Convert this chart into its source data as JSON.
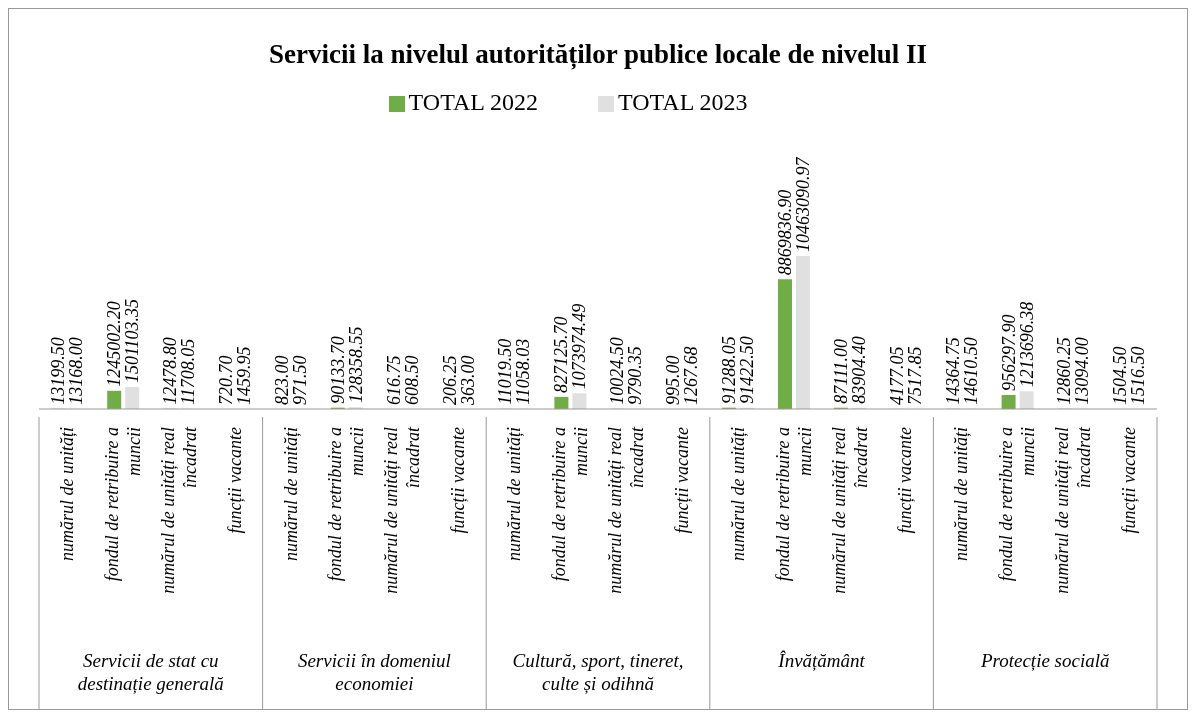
{
  "chart_data": {
    "type": "bar",
    "title": "Servicii la nivelul autorităților publice locale de nivelul II",
    "categories": [
      "numărul de unități",
      "fondul de retribuire a muncii",
      "numărul de unități real încadrat",
      "funcții vacante",
      "numărul de unități",
      "fondul de retribuire a muncii",
      "numărul de unități real încadrat",
      "funcții vacante",
      "numărul de unități",
      "fondul de retribuire a muncii",
      "numărul de unități real încadrat",
      "funcții vacante",
      "numărul de unități",
      "fondul de retribuire a muncii",
      "numărul de unități real încadrat",
      "funcții vacante",
      "numărul de unități",
      "fondul de retribuire a muncii",
      "numărul de unități real încadrat",
      "funcții vacante"
    ],
    "series": [
      {
        "name": "TOTAL 2022",
        "color": "#70ad47",
        "values": [
          13199.5,
          1245002.2,
          12478.8,
          720.7,
          823,
          90133.7,
          616.75,
          206.25,
          11019.5,
          827125.7,
          10024.5,
          995,
          91288.05,
          8869836.9,
          87111,
          4177.05,
          14364.75,
          956297.9,
          12860.25,
          1504.5
        ],
        "value_labels": [
          "13199.50",
          "1245002.20",
          "12478.80",
          "720.70",
          "823.00",
          "90133.70",
          "616.75",
          "206.25",
          "11019.50",
          "827125.70",
          "10024.50",
          "995.00",
          "91288.05",
          "8869836.90",
          "87111.00",
          "4177.05",
          "14364.75",
          "956297.90",
          "12860.25",
          "1504.50"
        ]
      },
      {
        "name": "TOTAL 2023",
        "color": "#e0e0e0",
        "values": [
          13168,
          1501103.35,
          11708.05,
          1459.95,
          971.5,
          128358.55,
          608.5,
          363,
          11058.03,
          1073974.49,
          9790.35,
          1267.68,
          91422.5,
          10463090.97,
          83904.4,
          7517.85,
          14610.5,
          1213696.38,
          13094,
          1516.5
        ],
        "value_labels": [
          "13168.00",
          "1501103.35",
          "11708.05",
          "1459.95",
          "971.50",
          "128358.55",
          "608.50",
          "363.00",
          "11058.03",
          "1073974.49",
          "9790.35",
          "1267.68",
          "91422.50",
          "10463090.97",
          "83904.40",
          "7517.85",
          "14610.50",
          "1213696.38",
          "13094.00",
          "1516.50"
        ]
      }
    ],
    "annotations": [
      "Servicii de stat cu destinație generală",
      "Servicii în domeniul economiei",
      "Cultură, sport, tineret, culte și odihnă",
      "Învățământ",
      "Protecție socială"
    ],
    "legend": "top",
    "grid": false
  }
}
